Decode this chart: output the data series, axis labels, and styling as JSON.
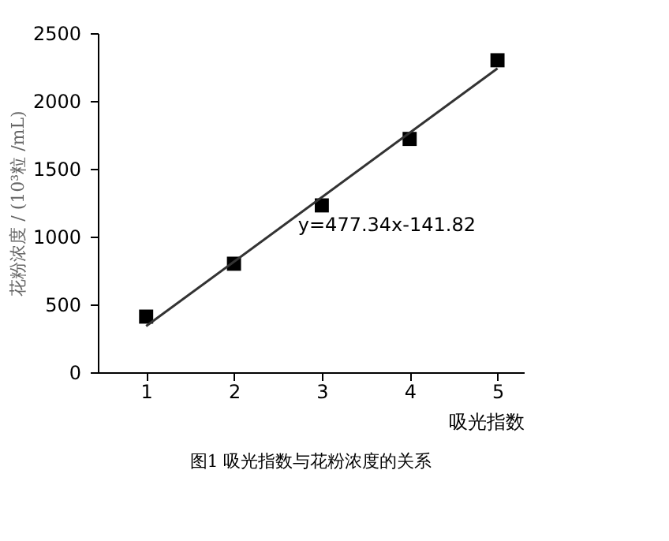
{
  "chart_data": {
    "type": "scatter",
    "xlabel": "吸光指数",
    "ylabel": "花粉浓度 / (10³粒 /mL)",
    "x": [
      1,
      2,
      3,
      4,
      5
    ],
    "series": [
      {
        "color": "#000000",
        "marker": "square",
        "values": [
          410,
          800,
          1230,
          1720,
          2300
        ]
      },
      {
        "type": "line",
        "color": "#333333",
        "line_style": "solid",
        "marker": "none",
        "x": [
          1,
          5
        ],
        "values": [
          340,
          2240
        ]
      }
    ],
    "xlim": [
      0.45,
      5.3
    ],
    "xticks": [
      1,
      2,
      3,
      4,
      5
    ],
    "ylim": [
      0,
      2500
    ],
    "yticks": [
      0,
      500,
      1000,
      1500,
      2000,
      2500
    ],
    "grid": false,
    "annotations": [
      "y=477.34x-141.82",
      "图1 吸光指数与花粉浓度的关系"
    ]
  }
}
